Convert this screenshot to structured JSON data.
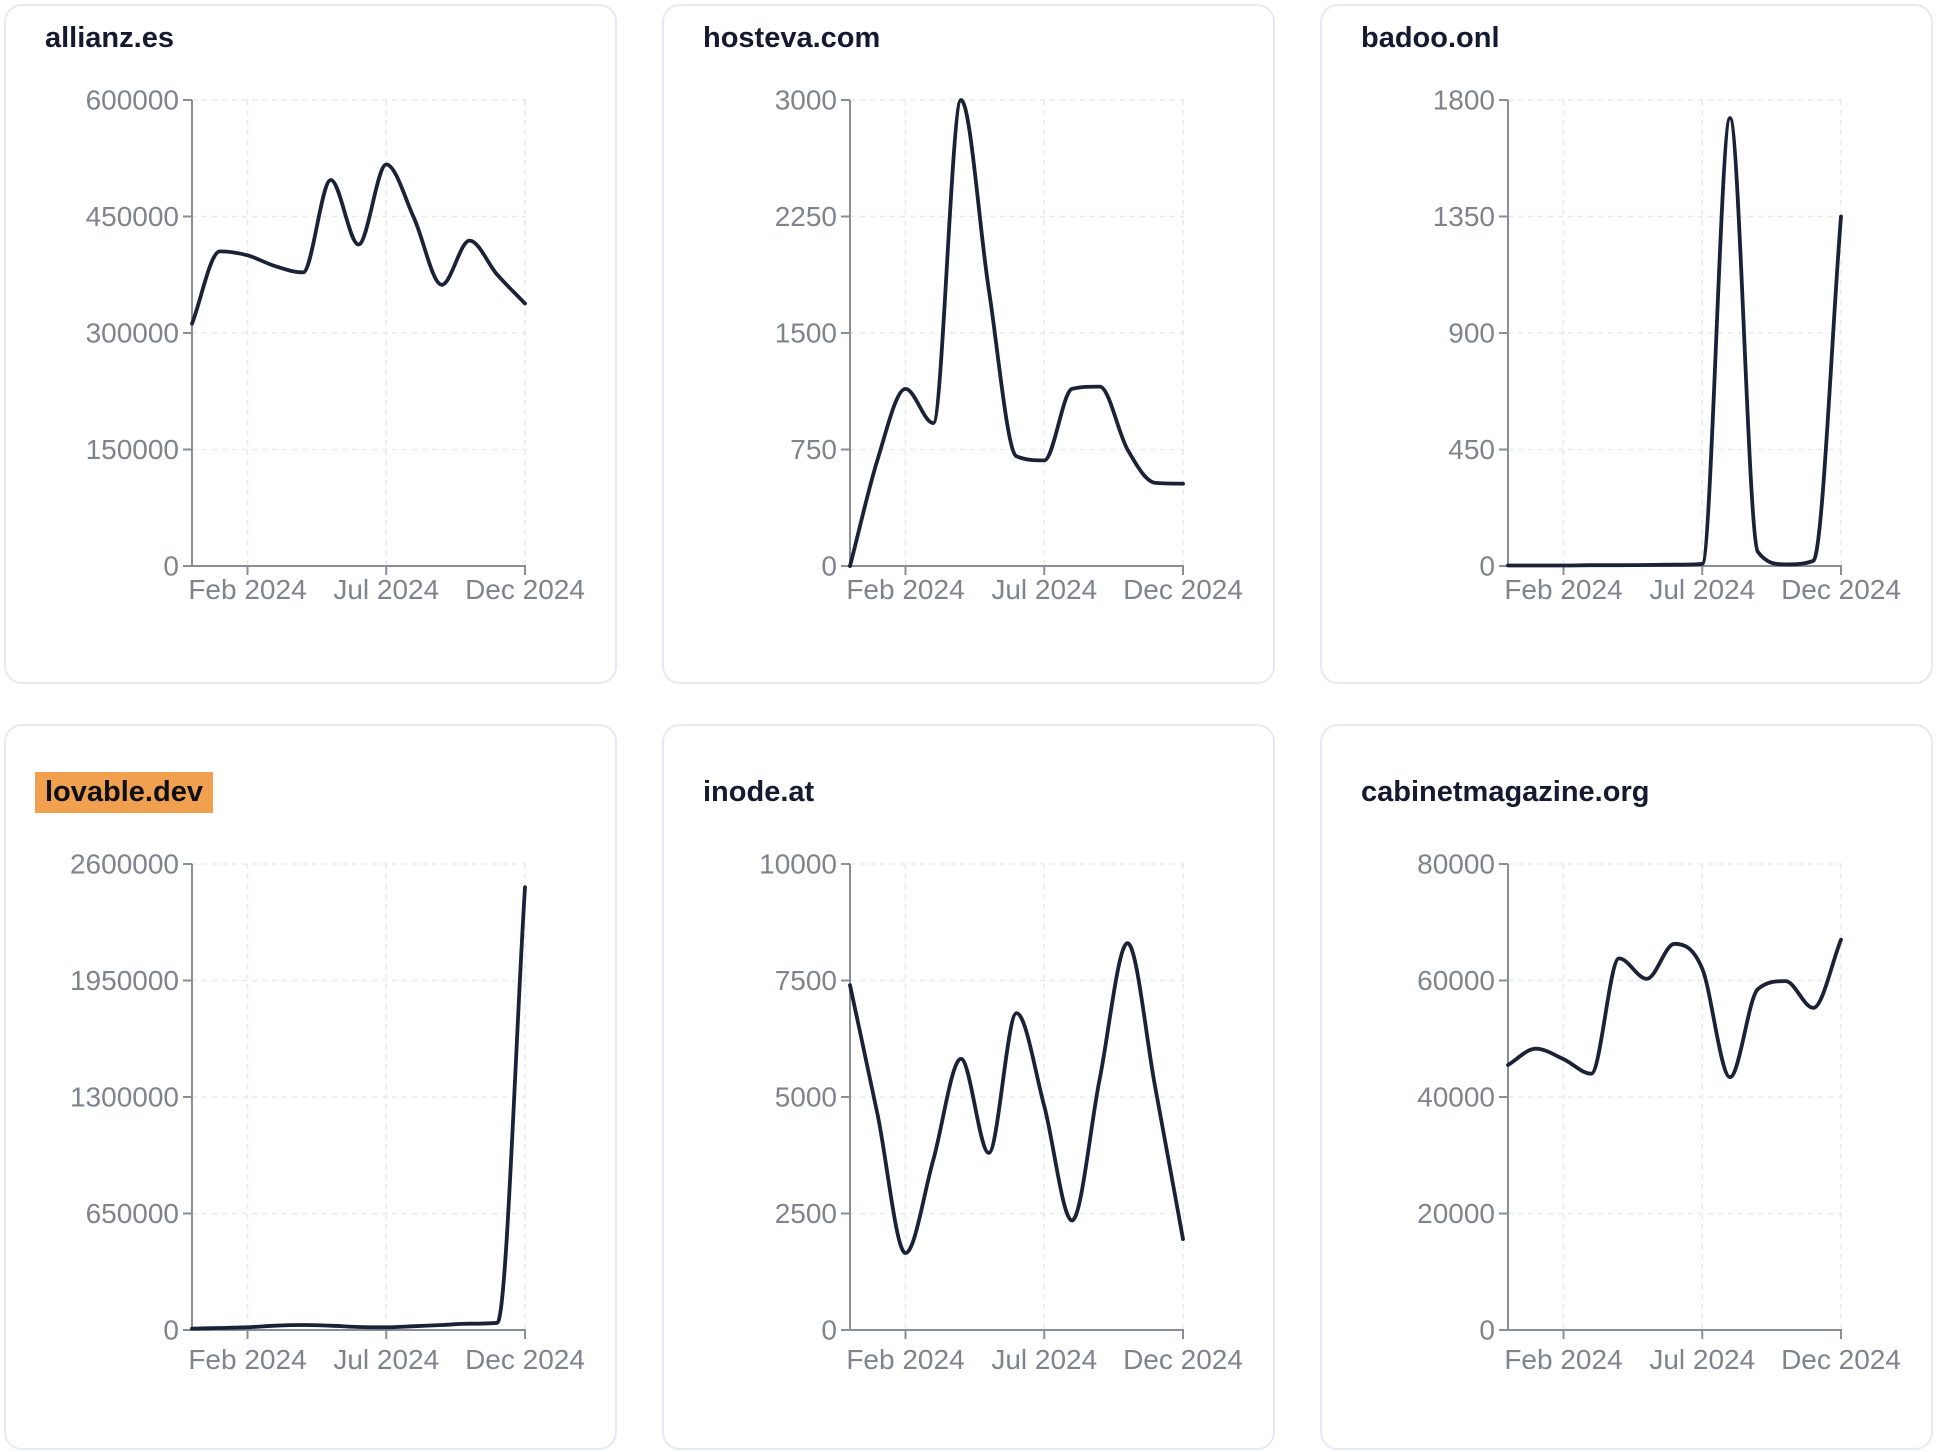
{
  "page": {
    "background": "#ffffff"
  },
  "colors": {
    "line": "#1b2136",
    "title": "#151a31",
    "axis": "#8b8e96",
    "tick_label": "#7f838c",
    "grid": "#e8e9ef",
    "card_border": "#e6e9f3",
    "highlight_bg": "#f0a04e",
    "highlight_text": "#0d0f16"
  },
  "x_axis_tick_labels": [
    "Feb 2024",
    "Jul 2024",
    "Dec 2024"
  ],
  "chart_data": [
    {
      "type": "line",
      "title": "allianz.es",
      "highlighted": false,
      "x": [
        "Dec 2023",
        "Jan 2024",
        "Feb 2024",
        "Mar 2024",
        "Apr 2024",
        "May 2024",
        "Jun 2024",
        "Jul 2024",
        "Aug 2024",
        "Sep 2024",
        "Oct 2024",
        "Nov 2024",
        "Dec 2024"
      ],
      "values": [
        312000,
        405000,
        400000,
        386000,
        378000,
        497000,
        414000,
        517000,
        448000,
        362000,
        419000,
        375000,
        338000
      ],
      "ylim": [
        0,
        600000
      ],
      "y_ticks": [
        0,
        150000,
        300000,
        450000,
        600000
      ],
      "x_tick_labels": [
        "Feb 2024",
        "Jul 2024",
        "Dec 2024"
      ],
      "grid": "dashed",
      "legend": "none"
    },
    {
      "type": "line",
      "title": "hosteva.com",
      "highlighted": false,
      "x": [
        "Dec 2023",
        "Jan 2024",
        "Feb 2024",
        "Mar 2024",
        "Apr 2024",
        "May 2024",
        "Jun 2024",
        "Jul 2024",
        "Aug 2024",
        "Sep 2024",
        "Oct 2024",
        "Nov 2024",
        "Dec 2024"
      ],
      "values": [
        0,
        690,
        1140,
        920,
        3000,
        1780,
        706,
        680,
        1140,
        1155,
        750,
        535,
        530
      ],
      "ylim": [
        0,
        3000
      ],
      "y_ticks": [
        0,
        750,
        1500,
        2250,
        3000
      ],
      "x_tick_labels": [
        "Feb 2024",
        "Jul 2024",
        "Dec 2024"
      ],
      "grid": "dashed",
      "legend": "none"
    },
    {
      "type": "line",
      "title": "badoo.onl",
      "highlighted": false,
      "x": [
        "Dec 2023",
        "Jan 2024",
        "Feb 2024",
        "Mar 2024",
        "Apr 2024",
        "May 2024",
        "Jun 2024",
        "Jul 2024",
        "Aug 2024",
        "Sep 2024",
        "Oct 2024",
        "Nov 2024",
        "Dec 2024"
      ],
      "values": [
        2,
        2,
        2,
        3,
        3,
        4,
        5,
        8,
        1730,
        55,
        6,
        20,
        1350
      ],
      "ylim": [
        0,
        1800
      ],
      "y_ticks": [
        0,
        450,
        900,
        1350,
        1800
      ],
      "x_tick_labels": [
        "Feb 2024",
        "Jul 2024",
        "Dec 2024"
      ],
      "grid": "dashed",
      "legend": "none"
    },
    {
      "type": "line",
      "title": "lovable.dev",
      "highlighted": true,
      "x": [
        "Dec 2023",
        "Jan 2024",
        "Feb 2024",
        "Mar 2024",
        "Apr 2024",
        "May 2024",
        "Jun 2024",
        "Jul 2024",
        "Aug 2024",
        "Sep 2024",
        "Oct 2024",
        "Nov 2024",
        "Dec 2024"
      ],
      "values": [
        8000,
        11000,
        15000,
        24000,
        28000,
        24000,
        17000,
        15000,
        21000,
        28000,
        35000,
        40000,
        2470000
      ],
      "ylim": [
        0,
        2600000
      ],
      "y_ticks": [
        0,
        650000,
        1300000,
        1950000,
        2600000
      ],
      "x_tick_labels": [
        "Feb 2024",
        "Jul 2024",
        "Dec 2024"
      ],
      "grid": "dashed",
      "legend": "none"
    },
    {
      "type": "line",
      "title": "inode.at",
      "highlighted": false,
      "x": [
        "Dec 2023",
        "Jan 2024",
        "Feb 2024",
        "Mar 2024",
        "Apr 2024",
        "May 2024",
        "Jun 2024",
        "Jul 2024",
        "Aug 2024",
        "Sep 2024",
        "Oct 2024",
        "Nov 2024",
        "Dec 2024"
      ],
      "values": [
        7400,
        4600,
        1650,
        3650,
        5820,
        3800,
        6800,
        4800,
        2350,
        5400,
        8300,
        5200,
        1950
      ],
      "ylim": [
        0,
        10000
      ],
      "y_ticks": [
        0,
        2500,
        5000,
        7500,
        10000
      ],
      "x_tick_labels": [
        "Feb 2024",
        "Jul 2024",
        "Dec 2024"
      ],
      "grid": "dashed",
      "legend": "none"
    },
    {
      "type": "line",
      "title": "cabinetmagazine.org",
      "highlighted": false,
      "x": [
        "Dec 2023",
        "Jan 2024",
        "Feb 2024",
        "Mar 2024",
        "Apr 2024",
        "May 2024",
        "Jun 2024",
        "Jul 2024",
        "Aug 2024",
        "Sep 2024",
        "Oct 2024",
        "Nov 2024",
        "Dec 2024"
      ],
      "values": [
        45500,
        48300,
        46500,
        44000,
        63800,
        60300,
        66300,
        62000,
        43400,
        58500,
        59900,
        55300,
        67000
      ],
      "ylim": [
        0,
        80000
      ],
      "y_ticks": [
        0,
        20000,
        40000,
        60000,
        80000
      ],
      "x_tick_labels": [
        "Feb 2024",
        "Jul 2024",
        "Dec 2024"
      ],
      "grid": "dashed",
      "legend": "none"
    }
  ]
}
